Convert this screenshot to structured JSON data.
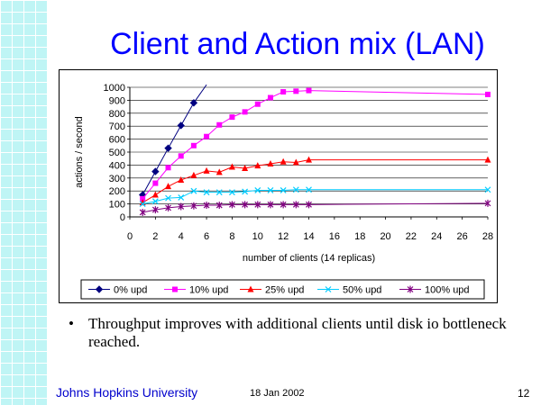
{
  "slide": {
    "title": "Client and Action mix (LAN)",
    "bullet": "Throughput improves with additional clients until disk io bottleneck reached.",
    "bullet_symbol": "•",
    "footer_org": "Johns Hopkins University",
    "footer_date": "18 Jan 2002",
    "footer_page": "12"
  },
  "colors": {
    "title": "#0000ff",
    "grid_strip": "#bff5f5",
    "footer_org": "#0000cc"
  },
  "chart_data": {
    "type": "line",
    "xlabel": "number of clients (14 replicas)",
    "ylabel": "actions / second",
    "xlim": [
      0,
      28
    ],
    "ylim": [
      0,
      1000
    ],
    "x_ticks": [
      0,
      2,
      4,
      6,
      8,
      10,
      12,
      14,
      16,
      18,
      20,
      22,
      24,
      26,
      28
    ],
    "y_ticks": [
      0,
      100,
      200,
      300,
      400,
      500,
      600,
      700,
      800,
      900,
      1000
    ],
    "grid": "horizontal",
    "legend_position": "bottom",
    "series": [
      {
        "name": "0% upd",
        "color": "#000080",
        "marker": "diamond",
        "x": [
          1,
          2,
          3,
          4,
          5
        ],
        "y": [
          170,
          350,
          530,
          705,
          880
        ],
        "trend_to": [
          6,
          1020
        ]
      },
      {
        "name": "10% upd",
        "color": "#ff00ff",
        "marker": "square",
        "x": [
          1,
          2,
          3,
          4,
          5,
          6,
          7,
          8,
          9,
          10,
          11,
          12,
          13,
          14,
          28
        ],
        "y": [
          140,
          260,
          380,
          470,
          550,
          620,
          710,
          770,
          810,
          870,
          920,
          965,
          970,
          975,
          945
        ]
      },
      {
        "name": "25% upd",
        "color": "#ff0000",
        "marker": "triangle",
        "x": [
          1,
          2,
          3,
          4,
          5,
          6,
          7,
          8,
          9,
          10,
          11,
          12,
          13,
          14,
          28
        ],
        "y": [
          110,
          170,
          235,
          285,
          320,
          355,
          345,
          385,
          375,
          395,
          410,
          425,
          420,
          440,
          440
        ]
      },
      {
        "name": "50% upd",
        "color": "#00ccff",
        "marker": "x",
        "x": [
          1,
          2,
          3,
          4,
          5,
          6,
          7,
          8,
          9,
          10,
          11,
          12,
          13,
          14,
          28
        ],
        "y": [
          100,
          120,
          145,
          150,
          200,
          190,
          190,
          190,
          195,
          205,
          205,
          205,
          210,
          210,
          210
        ]
      },
      {
        "name": "100% upd",
        "color": "#800080",
        "marker": "star",
        "x": [
          1,
          2,
          3,
          4,
          5,
          6,
          7,
          8,
          9,
          10,
          11,
          12,
          13,
          14,
          28
        ],
        "y": [
          35,
          55,
          70,
          80,
          85,
          90,
          90,
          95,
          95,
          95,
          95,
          95,
          95,
          95,
          105
        ]
      }
    ]
  }
}
